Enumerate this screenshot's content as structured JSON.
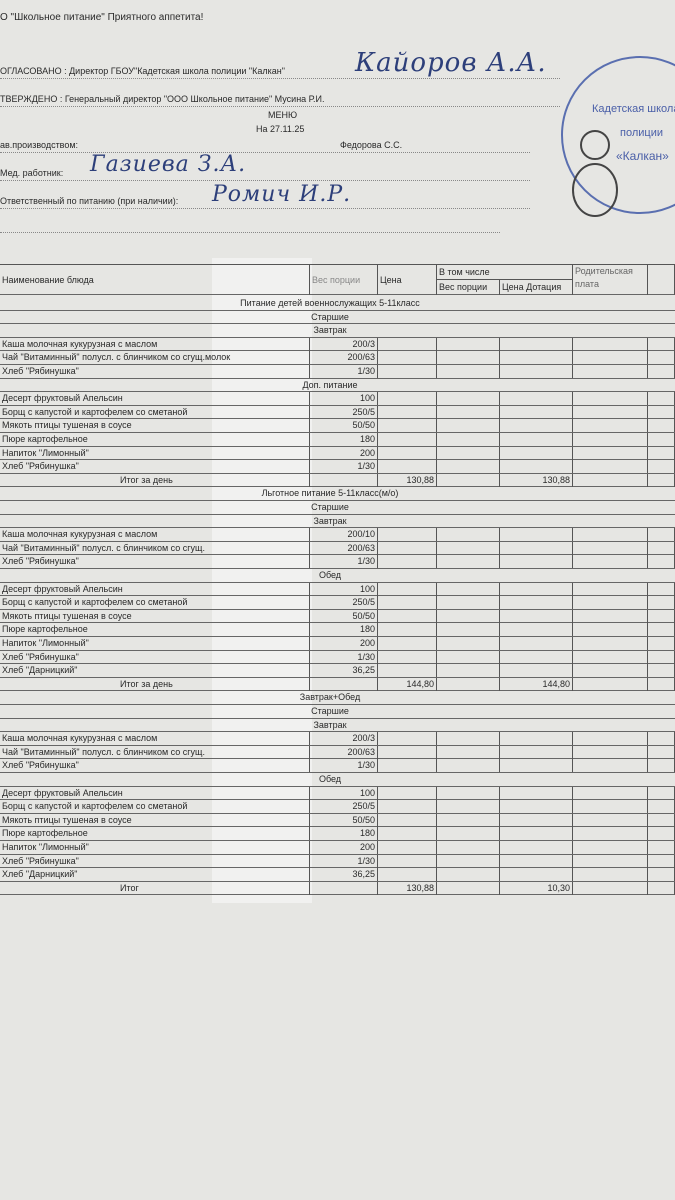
{
  "header": {
    "company": "О \"Школьное питание\" Приятного аппетита!",
    "agreed": "ОГЛАСОВАНО : Директор ГБОУ\"Кадетская школа полиции \"Калкан\"",
    "agreed_signature": "Кайоров А.А.",
    "approved": "ТВЕРЖДЕНО : Генеральный директор \"ООО Школьное питание\" Мусина Р.И.",
    "title": "МЕНЮ",
    "date": "На 27.11.25",
    "production_label": "ав.производством:",
    "production_name": "Федорова С.С.",
    "medic_label": "Мед. работник:",
    "medic_signature": "Газиева З.А.",
    "responsible_label": "Ответственный по питанию (при наличии):",
    "responsible_signature": "Ромич И.Р."
  },
  "stamp": {
    "line1": "Кадетская школа",
    "line2": "полиции",
    "line3": "«Калкан»"
  },
  "table": {
    "columns": {
      "name": "Наименование блюда",
      "weight": "Вес порции",
      "price": "Цена",
      "group": "В том числе",
      "weight2": "Вес порции",
      "price2": "Цена Дотация",
      "parent": "Родительская плата"
    },
    "rows": [
      {
        "section": "Питание детей военнослужащих 5-11класс"
      },
      {
        "section": "Старшие"
      },
      {
        "section": "Завтрак"
      },
      {
        "name": "Каша молочная кукурузная с маслом",
        "weight": "200/3"
      },
      {
        "name": "Чай \"Витаминный\" полусл. с блинчиком со сгущ.молок",
        "weight": "200/63"
      },
      {
        "name": "Хлеб \"Рябинушка\"",
        "weight": "1/30"
      },
      {
        "section": "Доп. питание"
      },
      {
        "name": "Десерт фруктовый Апельсин",
        "weight": "100"
      },
      {
        "name": "Борщ с капустой и картофелем со сметаной",
        "weight": "250/5"
      },
      {
        "name": "Мякоть птицы тушеная в соусе",
        "weight": "50/50"
      },
      {
        "name": "Пюре картофельное",
        "weight": "180"
      },
      {
        "name": "Напиток \"Лимонный\"",
        "weight": "200"
      },
      {
        "name": "Хлеб \"Рябинушка\"",
        "weight": "1/30"
      },
      {
        "total": "Итог за день",
        "price": "130,88",
        "price2": "130,88"
      },
      {
        "section": "Льготное питание 5-11класс(м/о)"
      },
      {
        "section": "Старшие"
      },
      {
        "section": "Завтрак"
      },
      {
        "name": "Каша молочная кукурузная с маслом",
        "weight": "200/10"
      },
      {
        "name": "Чай \"Витаминный\" полусл. с блинчиком со сгущ.",
        "weight": "200/63"
      },
      {
        "name": "Хлеб \"Рябинушка\"",
        "weight": "1/30"
      },
      {
        "section": "Обед"
      },
      {
        "name": "Десерт фруктовый Апельсин",
        "weight": "100"
      },
      {
        "name": "Борщ с капустой и картофелем со сметаной",
        "weight": "250/5"
      },
      {
        "name": "Мякоть птицы тушеная в соусе",
        "weight": "50/50"
      },
      {
        "name": "Пюре картофельное",
        "weight": "180"
      },
      {
        "name": "Напиток \"Лимонный\"",
        "weight": "200"
      },
      {
        "name": "Хлеб \"Рябинушка\"",
        "weight": "1/30"
      },
      {
        "name": "Хлеб \"Дарницкий\"",
        "weight": "36,25"
      },
      {
        "total": "Итог за день",
        "price": "144,80",
        "price2": "144,80"
      },
      {
        "section": "Завтрак+Обед"
      },
      {
        "section": "Старшие"
      },
      {
        "section": "Завтрак"
      },
      {
        "name": "Каша молочная кукурузная с маслом",
        "weight": "200/3"
      },
      {
        "name": "Чай \"Витаминный\" полусл. с блинчиком со сгущ.",
        "weight": "200/63"
      },
      {
        "name": "Хлеб \"Рябинушка\"",
        "weight": "1/30"
      },
      {
        "section": "Обед"
      },
      {
        "name": "Десерт фруктовый Апельсин",
        "weight": "100"
      },
      {
        "name": "Борщ с капустой и картофелем со сметаной",
        "weight": "250/5"
      },
      {
        "name": "Мякоть птицы тушеная в соусе",
        "weight": "50/50"
      },
      {
        "name": "Пюре картофельное",
        "weight": "180"
      },
      {
        "name": "Напиток \"Лимонный\"",
        "weight": "200"
      },
      {
        "name": "Хлеб \"Рябинушка\"",
        "weight": "1/30"
      },
      {
        "name": "Хлеб \"Дарницкий\"",
        "weight": "36,25"
      },
      {
        "total": "Итог",
        "price": "130,88",
        "price2": "10,30"
      }
    ]
  }
}
